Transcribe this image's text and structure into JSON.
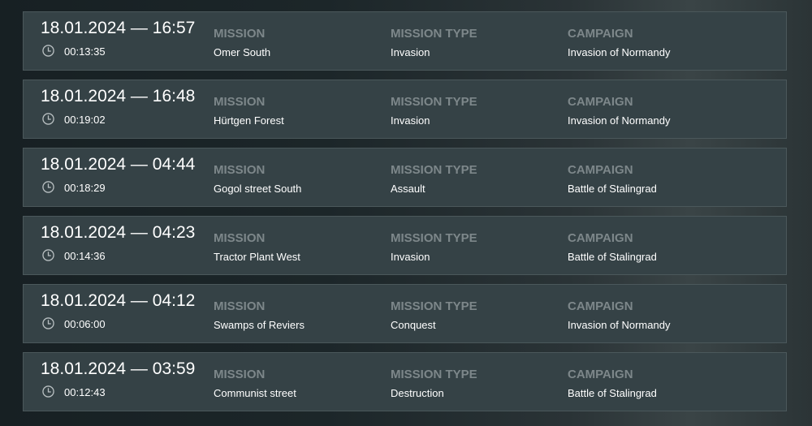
{
  "labels": {
    "mission": "MISSION",
    "mission_type": "MISSION TYPE",
    "campaign": "CAMPAIGN"
  },
  "matches": [
    {
      "datetime": "18.01.2024 — 16:57",
      "duration": "00:13:35",
      "mission": "Omer South",
      "mission_type": "Invasion",
      "campaign": "Invasion of Normandy"
    },
    {
      "datetime": "18.01.2024 — 16:48",
      "duration": "00:19:02",
      "mission": "Hürtgen Forest",
      "mission_type": "Invasion",
      "campaign": "Invasion of Normandy"
    },
    {
      "datetime": "18.01.2024 — 04:44",
      "duration": "00:18:29",
      "mission": "Gogol street South",
      "mission_type": "Assault",
      "campaign": "Battle of Stalingrad"
    },
    {
      "datetime": "18.01.2024 — 04:23",
      "duration": "00:14:36",
      "mission": "Tractor Plant West",
      "mission_type": "Invasion",
      "campaign": "Battle of Stalingrad"
    },
    {
      "datetime": "18.01.2024 — 04:12",
      "duration": "00:06:00",
      "mission": "Swamps of Reviers",
      "mission_type": "Conquest",
      "campaign": "Invasion of Normandy"
    },
    {
      "datetime": "18.01.2024 — 03:59",
      "duration": "00:12:43",
      "mission": "Communist street",
      "mission_type": "Destruction",
      "campaign": "Battle of Stalingrad"
    }
  ]
}
